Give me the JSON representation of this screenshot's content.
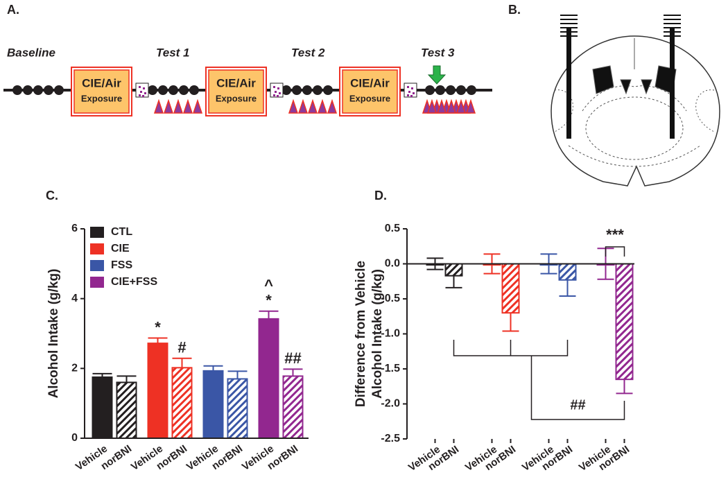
{
  "panel_labels": [
    "A.",
    "B.",
    "C.",
    "D."
  ],
  "timeline": {
    "phases": [
      "Baseline",
      "Test 1",
      "Test 2",
      "Test 3"
    ],
    "boxes": [
      [
        "CIE/Air",
        "Exposure"
      ],
      [
        "CIE/Air",
        "Exposure"
      ],
      [
        "CIE/Air",
        "Exposure"
      ]
    ]
  },
  "chart_data": [
    {
      "type": "bar",
      "ylabel": "Alcohol Intake (g/kg)",
      "categories": [
        "Vehicle",
        "norBNI"
      ],
      "hatch": [
        false,
        true
      ],
      "ylim": [
        0,
        6
      ],
      "yticks": [
        0,
        2,
        4,
        6
      ],
      "legend": "top-left",
      "series": [
        {
          "name": "CTL",
          "color": "#231f20",
          "values": [
            1.75,
            1.6
          ],
          "errors": [
            0.1,
            0.18
          ],
          "annotations": [
            [],
            []
          ]
        },
        {
          "name": "CIE",
          "color": "#ee3124",
          "values": [
            2.72,
            2.02
          ],
          "errors": [
            0.15,
            0.27
          ],
          "annotations": [
            [
              "*"
            ],
            [
              "#"
            ]
          ]
        },
        {
          "name": "FSS",
          "color": "#3a56a6",
          "values": [
            1.93,
            1.7
          ],
          "errors": [
            0.14,
            0.22
          ],
          "annotations": [
            [],
            []
          ]
        },
        {
          "name": "CIE+FSS",
          "color": "#92278f",
          "values": [
            3.42,
            1.78
          ],
          "errors": [
            0.22,
            0.2
          ],
          "annotations": [
            [
              "^",
              "*"
            ],
            [
              "##"
            ]
          ]
        }
      ]
    },
    {
      "type": "bar",
      "ylabel": [
        "Difference from Vehicle",
        "Alcohol Intake (g/kg)"
      ],
      "categories": [
        "Vehicle",
        "norBNI"
      ],
      "hatch": [
        false,
        true
      ],
      "ylim": [
        -2.5,
        0.5
      ],
      "yticks": [
        -2.5,
        {
          "value": -2.0,
          "label": "-2.0"
        },
        -1.5,
        {
          "value": -1.0,
          "label": "-1.0"
        },
        -0.5,
        {
          "value": 0.0,
          "label": "0.0"
        },
        0.5
      ],
      "annotations": [
        "***",
        "##"
      ],
      "series": [
        {
          "name": "CTL",
          "color": "#231f20",
          "values": [
            0,
            -0.17
          ],
          "errors": [
            0.08,
            0.17
          ]
        },
        {
          "name": "CIE",
          "color": "#ee3124",
          "values": [
            0,
            -0.7
          ],
          "errors": [
            0.14,
            0.26
          ]
        },
        {
          "name": "FSS",
          "color": "#3a56a6",
          "values": [
            0,
            -0.23
          ],
          "errors": [
            0.14,
            0.23
          ]
        },
        {
          "name": "CIE+FSS",
          "color": "#92278f",
          "values": [
            0,
            -1.65
          ],
          "errors": [
            0.22,
            0.2
          ]
        }
      ]
    }
  ]
}
